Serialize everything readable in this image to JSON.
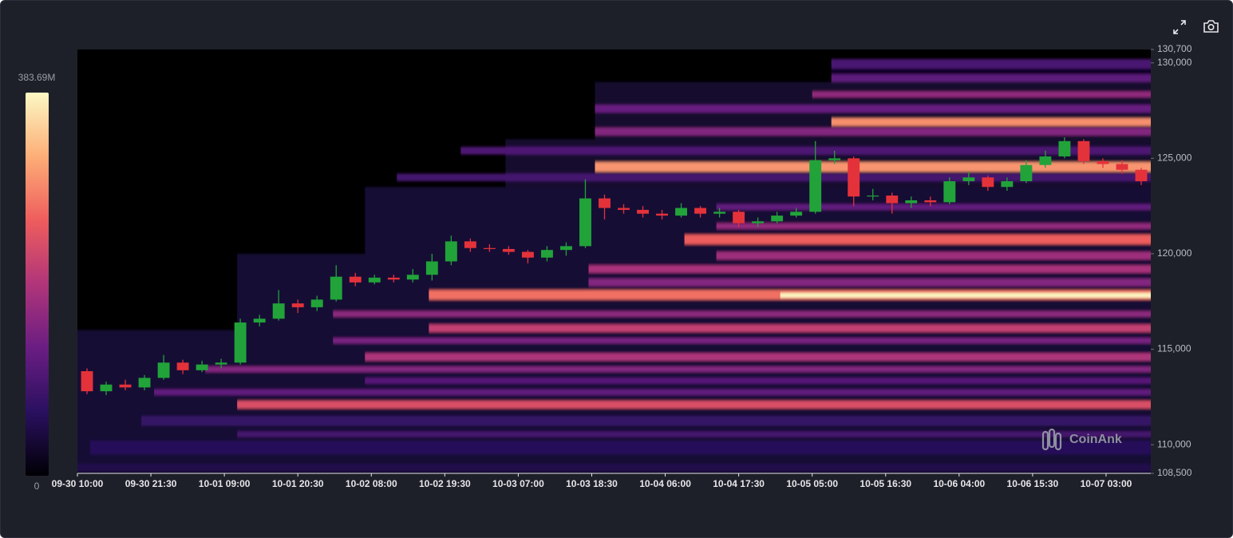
{
  "chart_data": {
    "type": "candlestick",
    "up_color": "#21a33a",
    "down_color": "#e4323a",
    "plot_background": "#000000",
    "watermark": "CoinAnk",
    "xlim": [
      0,
      168
    ],
    "xticks": [
      {
        "value": 0,
        "label": "09-30 10:00"
      },
      {
        "value": 11.5,
        "label": "09-30 21:30"
      },
      {
        "value": 23,
        "label": "10-01 09:00"
      },
      {
        "value": 34.5,
        "label": "10-01 20:30"
      },
      {
        "value": 46,
        "label": "10-02 08:00"
      },
      {
        "value": 57.5,
        "label": "10-02 19:30"
      },
      {
        "value": 69,
        "label": "10-03 07:00"
      },
      {
        "value": 80.5,
        "label": "10-03 18:30"
      },
      {
        "value": 92,
        "label": "10-04 06:00"
      },
      {
        "value": 103.5,
        "label": "10-04 17:30"
      },
      {
        "value": 115,
        "label": "10-05 05:00"
      },
      {
        "value": 126.5,
        "label": "10-05 16:30"
      },
      {
        "value": 138,
        "label": "10-06 04:00"
      },
      {
        "value": 149.5,
        "label": "10-06 15:30"
      },
      {
        "value": 161,
        "label": "10-07 03:00"
      }
    ],
    "ylim": [
      108500,
      130700
    ],
    "yticks": [
      {
        "value": 108500,
        "label": "108,500"
      },
      {
        "value": 110000,
        "label": "110,000"
      },
      {
        "value": 115000,
        "label": "115,000"
      },
      {
        "value": 120000,
        "label": "120,000"
      },
      {
        "value": 125000,
        "label": "125,000"
      },
      {
        "value": 130000,
        "label": "130,000"
      },
      {
        "value": 130700,
        "label": "130,700"
      }
    ],
    "clim": [
      0,
      383.69
    ],
    "cticks": [
      0,
      {
        "value": 383.69,
        "label": "383.69M"
      }
    ],
    "colormap": [
      "#000004",
      "#2a1060",
      "#6a1d82",
      "#b0357a",
      "#ee5d5d",
      "#fdae77",
      "#fcf8c4"
    ],
    "x": [
      1.5,
      4.5,
      7.5,
      10.5,
      13.5,
      16.5,
      19.5,
      22.5,
      25.5,
      28.5,
      31.5,
      34.5,
      37.5,
      40.5,
      43.5,
      46.5,
      49.5,
      52.5,
      55.5,
      58.5,
      61.5,
      64.5,
      67.5,
      70.5,
      73.5,
      76.5,
      79.5,
      82.5,
      85.5,
      88.5,
      91.5,
      94.5,
      97.5,
      100.5,
      103.5,
      106.5,
      109.5,
      112.5,
      115.5,
      118.5,
      121.5,
      124.5,
      127.5,
      130.5,
      133.5,
      136.5,
      139.5,
      142.5,
      145.5,
      148.5,
      151.5,
      154.5,
      157.5,
      160.5,
      163.5,
      166.5
    ],
    "open": [
      113850,
      112800,
      113150,
      113000,
      113500,
      114300,
      113900,
      114200,
      114300,
      116400,
      116600,
      117400,
      117200,
      117600,
      118800,
      118500,
      118750,
      118650,
      118900,
      119600,
      120650,
      120300,
      120250,
      120100,
      119800,
      120200,
      120400,
      122900,
      122400,
      122300,
      122100,
      122000,
      122400,
      122100,
      122200,
      121600,
      121700,
      122000,
      122200,
      124900,
      125000,
      123000,
      123050,
      122650,
      122800,
      122700,
      123800,
      124000,
      123500,
      123800,
      124650,
      125100,
      125900,
      124850,
      124700,
      124400
    ],
    "high": [
      114000,
      113300,
      113400,
      113650,
      114700,
      114450,
      114400,
      114500,
      116600,
      116800,
      118100,
      117600,
      117800,
      119400,
      119000,
      118900,
      118900,
      119200,
      120000,
      120950,
      120800,
      120500,
      120400,
      120200,
      120400,
      120600,
      123900,
      123100,
      122600,
      122500,
      122300,
      122650,
      122500,
      122400,
      122300,
      121900,
      122200,
      122400,
      125900,
      125400,
      125100,
      123400,
      123200,
      123000,
      123000,
      124000,
      124300,
      124100,
      124000,
      124900,
      125400,
      126100,
      126000,
      125000,
      124900,
      124500
    ],
    "low": [
      112650,
      112600,
      112850,
      112850,
      113400,
      113700,
      113800,
      114000,
      114200,
      116200,
      116500,
      116900,
      117000,
      117500,
      118300,
      118400,
      118500,
      118500,
      118600,
      119400,
      120100,
      120100,
      119950,
      119500,
      119600,
      119900,
      120300,
      121800,
      122100,
      121900,
      121800,
      121900,
      121900,
      121900,
      121400,
      121400,
      121600,
      121900,
      122100,
      124700,
      122500,
      122800,
      122100,
      122400,
      122500,
      122600,
      123600,
      123300,
      123300,
      123700,
      124500,
      125000,
      124700,
      124500,
      124200,
      123600
    ],
    "close": [
      112800,
      113150,
      113000,
      113500,
      114300,
      113900,
      114200,
      114300,
      116400,
      116600,
      117400,
      117200,
      117600,
      118800,
      118500,
      118750,
      118650,
      118900,
      119600,
      120650,
      120300,
      120250,
      120100,
      119800,
      120200,
      120400,
      122900,
      122400,
      122300,
      122100,
      122000,
      122400,
      122100,
      122200,
      121600,
      121700,
      122000,
      122200,
      124900,
      125000,
      123000,
      123050,
      122650,
      122800,
      122700,
      123800,
      124000,
      123500,
      123800,
      124650,
      125100,
      125900,
      124850,
      124700,
      124400,
      123800
    ],
    "bands": [
      {
        "y0": 108500,
        "y1": 116000,
        "x0": 0,
        "value": 35
      },
      {
        "y0": 116000,
        "y1": 120000,
        "x0": 25,
        "value": 35
      },
      {
        "y0": 120000,
        "y1": 123500,
        "x0": 45,
        "value": 35
      },
      {
        "y0": 123500,
        "y1": 126000,
        "x0": 67,
        "value": 30
      },
      {
        "y0": 126000,
        "y1": 129000,
        "x0": 81,
        "value": 30
      },
      {
        "y0": 129000,
        "y1": 130200,
        "x0": 118,
        "value": 25
      },
      {
        "y0": 108600,
        "y1": 109000,
        "x0": 0,
        "value": 50
      },
      {
        "y0": 109500,
        "y1": 110200,
        "x0": 2,
        "value": 60
      },
      {
        "y0": 110400,
        "y1": 110700,
        "x0": 25,
        "value": 90
      },
      {
        "y0": 111000,
        "y1": 111500,
        "x0": 10,
        "value": 75
      },
      {
        "y0": 111900,
        "y1": 112300,
        "x0": 25,
        "value": 235
      },
      {
        "y0": 112600,
        "y1": 112900,
        "x0": 12,
        "value": 120
      },
      {
        "y0": 113200,
        "y1": 113500,
        "x0": 45,
        "value": 110
      },
      {
        "y0": 113800,
        "y1": 114100,
        "x0": 20,
        "value": 150
      },
      {
        "y0": 114400,
        "y1": 114800,
        "x0": 45,
        "value": 190
      },
      {
        "y0": 115300,
        "y1": 115600,
        "x0": 40,
        "value": 140
      },
      {
        "y0": 115900,
        "y1": 116300,
        "x0": 55,
        "value": 210
      },
      {
        "y0": 116700,
        "y1": 117000,
        "x0": 40,
        "value": 160
      },
      {
        "y0": 117600,
        "y1": 118100,
        "x0": 55,
        "value": 270
      },
      {
        "y0": 117700,
        "y1": 117950,
        "x0": 110,
        "value": 383
      },
      {
        "y0": 118300,
        "y1": 118700,
        "x0": 80,
        "value": 150
      },
      {
        "y0": 119000,
        "y1": 119400,
        "x0": 80,
        "value": 185
      },
      {
        "y0": 119700,
        "y1": 120100,
        "x0": 100,
        "value": 175
      },
      {
        "y0": 120500,
        "y1": 121000,
        "x0": 95,
        "value": 255
      },
      {
        "y0": 121300,
        "y1": 121600,
        "x0": 100,
        "value": 165
      },
      {
        "y0": 122300,
        "y1": 122600,
        "x0": 100,
        "value": 120
      },
      {
        "y0": 123800,
        "y1": 124200,
        "x0": 50,
        "value": 90
      },
      {
        "y0": 124300,
        "y1": 124800,
        "x0": 81,
        "value": 300
      },
      {
        "y0": 125200,
        "y1": 125600,
        "x0": 60,
        "value": 100
      },
      {
        "y0": 126200,
        "y1": 126600,
        "x0": 81,
        "value": 150
      },
      {
        "y0": 126700,
        "y1": 127100,
        "x0": 118,
        "value": 295
      },
      {
        "y0": 127400,
        "y1": 127800,
        "x0": 81,
        "value": 125
      },
      {
        "y0": 128200,
        "y1": 128500,
        "x0": 115,
        "value": 165
      },
      {
        "y0": 129000,
        "y1": 129400,
        "x0": 118,
        "value": 115
      },
      {
        "y0": 129700,
        "y1": 130200,
        "x0": 118,
        "value": 95
      }
    ]
  }
}
